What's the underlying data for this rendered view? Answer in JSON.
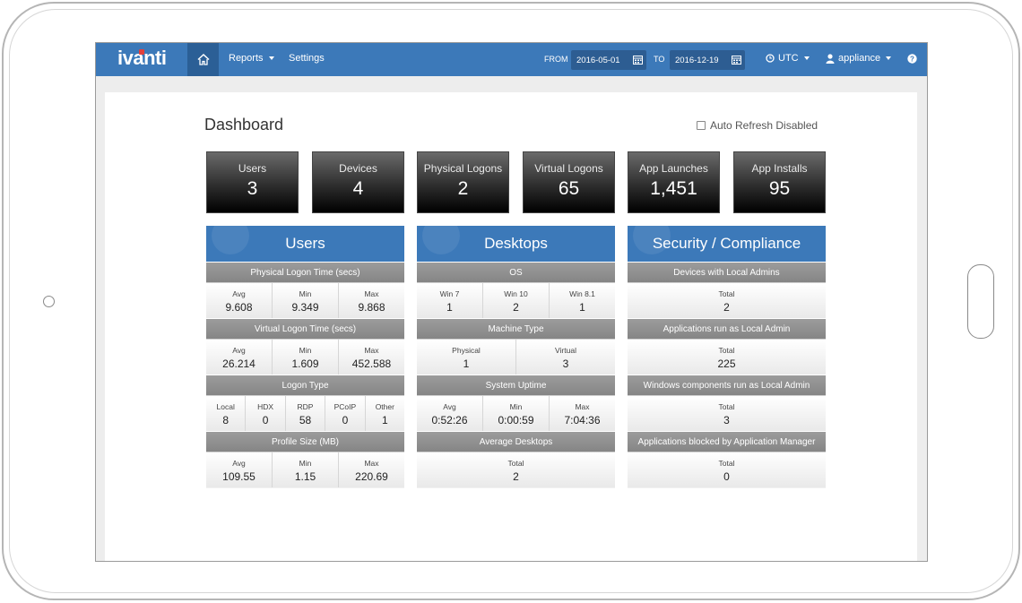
{
  "app": {
    "brand": "ivanti"
  },
  "nav": {
    "reports": "Reports",
    "settings": "Settings"
  },
  "filters": {
    "from_label": "FROM",
    "from_value": "2016-05-01",
    "to_label": "TO",
    "to_value": "2016-12-19"
  },
  "timezone": "UTC",
  "user": "appliance",
  "page": {
    "title": "Dashboard",
    "auto_refresh": "Auto Refresh Disabled"
  },
  "stats": [
    {
      "label": "Users",
      "value": "3"
    },
    {
      "label": "Devices",
      "value": "4"
    },
    {
      "label": "Physical Logons",
      "value": "2"
    },
    {
      "label": "Virtual Logons",
      "value": "65"
    },
    {
      "label": "App Launches",
      "value": "1,451"
    },
    {
      "label": "App Installs",
      "value": "95"
    }
  ],
  "panels": [
    {
      "title": "Users",
      "sections": [
        {
          "title": "Physical Logon Time (secs)",
          "cells": [
            {
              "h": "Avg",
              "v": "9.608"
            },
            {
              "h": "Min",
              "v": "9.349"
            },
            {
              "h": "Max",
              "v": "9.868"
            }
          ]
        },
        {
          "title": "Virtual Logon Time (secs)",
          "cells": [
            {
              "h": "Avg",
              "v": "26.214"
            },
            {
              "h": "Min",
              "v": "1.609"
            },
            {
              "h": "Max",
              "v": "452.588"
            }
          ]
        },
        {
          "title": "Logon Type",
          "cells": [
            {
              "h": "Local",
              "v": "8"
            },
            {
              "h": "HDX",
              "v": "0"
            },
            {
              "h": "RDP",
              "v": "58"
            },
            {
              "h": "PCoIP",
              "v": "0"
            },
            {
              "h": "Other",
              "v": "1"
            }
          ]
        },
        {
          "title": "Profile Size (MB)",
          "cells": [
            {
              "h": "Avg",
              "v": "109.55"
            },
            {
              "h": "Min",
              "v": "1.15"
            },
            {
              "h": "Max",
              "v": "220.69"
            }
          ]
        }
      ]
    },
    {
      "title": "Desktops",
      "sections": [
        {
          "title": "OS",
          "cells": [
            {
              "h": "Win 7",
              "v": "1"
            },
            {
              "h": "Win 10",
              "v": "2"
            },
            {
              "h": "Win 8.1",
              "v": "1"
            }
          ]
        },
        {
          "title": "Machine Type",
          "cells": [
            {
              "h": "Physical",
              "v": "1"
            },
            {
              "h": "Virtual",
              "v": "3"
            }
          ]
        },
        {
          "title": "System Uptime",
          "cells": [
            {
              "h": "Avg",
              "v": "0:52:26"
            },
            {
              "h": "Min",
              "v": "0:00:59"
            },
            {
              "h": "Max",
              "v": "7:04:36"
            }
          ]
        },
        {
          "title": "Average Desktops",
          "cells": [
            {
              "h": "Total",
              "v": "2"
            }
          ]
        }
      ]
    },
    {
      "title": "Security / Compliance",
      "sections": [
        {
          "title": "Devices with Local Admins",
          "cells": [
            {
              "h": "Total",
              "v": "2"
            }
          ]
        },
        {
          "title": "Applications run as Local Admin",
          "cells": [
            {
              "h": "Total",
              "v": "225"
            }
          ]
        },
        {
          "title": "Windows components run as Local Admin",
          "cells": [
            {
              "h": "Total",
              "v": "3"
            }
          ]
        },
        {
          "title": "Applications blocked by Application Manager",
          "cells": [
            {
              "h": "Total",
              "v": "0"
            }
          ]
        }
      ]
    }
  ],
  "colors": {
    "nav": "#3c79b9",
    "home_active": "#2b5f96",
    "panel_header": "#3c79b9",
    "section_header": "#919191",
    "stat_tile": "#1e1e1e"
  },
  "icons": [
    "home-icon",
    "calendar-icon",
    "clock-icon",
    "user-icon",
    "help-icon",
    "checkbox-icon"
  ]
}
